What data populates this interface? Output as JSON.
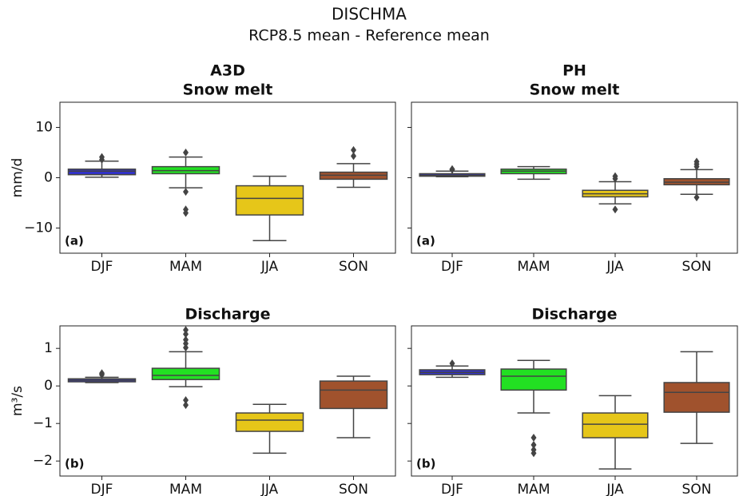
{
  "title": "DISCHMA",
  "subtitle": "RCP8.5 mean - Reference mean",
  "chart_data": [
    {
      "type": "box",
      "title": "A3D",
      "subtitle": "Snow melt",
      "panel_label": "(a)",
      "ylabel": "mm/d",
      "categories": [
        "DJF",
        "MAM",
        "JJA",
        "SON"
      ],
      "colors": [
        "#3232c8",
        "#22e022",
        "#e6c619",
        "#a0522d"
      ],
      "boxes": [
        {
          "whislo": 0.1,
          "q1": 0.6,
          "med": 1.3,
          "q3": 1.7,
          "whishi": 3.3,
          "fliers": [
            4.1,
            3.6
          ]
        },
        {
          "whislo": -2.0,
          "q1": 0.8,
          "med": 1.4,
          "q3": 2.2,
          "whishi": 4.1,
          "fliers": [
            5.0,
            -2.8,
            -6.3,
            -7.0
          ]
        },
        {
          "whislo": -12.5,
          "q1": -7.4,
          "med": -4.1,
          "q3": -1.6,
          "whishi": 0.3,
          "fliers": []
        },
        {
          "whislo": -1.9,
          "q1": -0.3,
          "med": 0.5,
          "q3": 1.1,
          "whishi": 2.8,
          "fliers": [
            4.3,
            5.5
          ]
        }
      ],
      "ylim": [
        -15,
        15
      ],
      "yticks": [
        {
          "value": -10,
          "label": "−10"
        },
        0,
        10
      ],
      "ytick_labels": true
    },
    {
      "type": "box",
      "title": "PH",
      "subtitle": "Snow melt",
      "panel_label": "(a)",
      "categories": [
        "DJF",
        "MAM",
        "JJA",
        "SON"
      ],
      "colors": [
        "#3232c8",
        "#22e022",
        "#e6c619",
        "#a0522d"
      ],
      "boxes": [
        {
          "whislo": 0.2,
          "q1": 0.3,
          "med": 0.5,
          "q3": 0.8,
          "whishi": 1.3,
          "fliers": [
            1.6,
            1.7
          ]
        },
        {
          "whislo": -0.3,
          "q1": 0.8,
          "med": 1.3,
          "q3": 1.7,
          "whishi": 2.2,
          "fliers": []
        },
        {
          "whislo": -5.2,
          "q1": -3.8,
          "med": -3.2,
          "q3": -2.5,
          "whishi": -0.8,
          "fliers": [
            0.3,
            -0.2,
            -6.3
          ]
        },
        {
          "whislo": -3.3,
          "q1": -1.4,
          "med": -0.9,
          "q3": -0.2,
          "whishi": 1.6,
          "fliers": [
            3.2,
            2.7,
            2.2,
            -3.9
          ]
        }
      ],
      "ylim": [
        -15,
        15
      ],
      "yticks": [
        -10,
        0,
        10
      ],
      "ytick_labels": false
    },
    {
      "type": "box",
      "title": "Discharge",
      "panel_label": "(b)",
      "ylabel": "m³/s",
      "categories": [
        "DJF",
        "MAM",
        "JJA",
        "SON"
      ],
      "colors": [
        "#3232c8",
        "#22e022",
        "#e6c619",
        "#a0522d"
      ],
      "boxes": [
        {
          "whislo": 0.09,
          "q1": 0.11,
          "med": 0.15,
          "q3": 0.19,
          "whishi": 0.23,
          "fliers": [
            0.34,
            0.3
          ]
        },
        {
          "whislo": -0.02,
          "q1": 0.17,
          "med": 0.28,
          "q3": 0.47,
          "whishi": 0.91,
          "fliers": [
            1.49,
            1.38,
            1.23,
            1.13,
            1.02,
            -0.38,
            -0.51
          ]
        },
        {
          "whislo": -1.79,
          "q1": -1.21,
          "med": -0.91,
          "q3": -0.72,
          "whishi": -0.49,
          "fliers": []
        },
        {
          "whislo": -1.38,
          "q1": -0.6,
          "med": -0.11,
          "q3": 0.13,
          "whishi": 0.26,
          "fliers": []
        }
      ],
      "ylim": [
        -2.4,
        1.6
      ],
      "yticks": [
        {
          "value": -2,
          "label": "−2"
        },
        {
          "value": -1,
          "label": "−1"
        },
        0,
        1
      ],
      "ytick_labels": true
    },
    {
      "type": "box",
      "title": "Discharge",
      "panel_label": "(b)",
      "categories": [
        "DJF",
        "MAM",
        "JJA",
        "SON"
      ],
      "colors": [
        "#3232c8",
        "#22e022",
        "#e6c619",
        "#a0522d"
      ],
      "boxes": [
        {
          "whislo": 0.23,
          "q1": 0.3,
          "med": 0.36,
          "q3": 0.43,
          "whishi": 0.53,
          "fliers": [
            0.6
          ]
        },
        {
          "whislo": -0.72,
          "q1": -0.11,
          "med": 0.26,
          "q3": 0.45,
          "whishi": 0.68,
          "fliers": [
            -1.38,
            -1.57,
            -1.7,
            -1.79
          ]
        },
        {
          "whislo": -2.21,
          "q1": -1.38,
          "med": -1.02,
          "q3": -0.72,
          "whishi": -0.26,
          "fliers": []
        },
        {
          "whislo": -1.53,
          "q1": -0.7,
          "med": -0.17,
          "q3": 0.09,
          "whishi": 0.91,
          "fliers": []
        }
      ],
      "ylim": [
        -2.4,
        1.6
      ],
      "yticks": [
        -2,
        -1,
        0,
        1
      ],
      "ytick_labels": false
    }
  ]
}
